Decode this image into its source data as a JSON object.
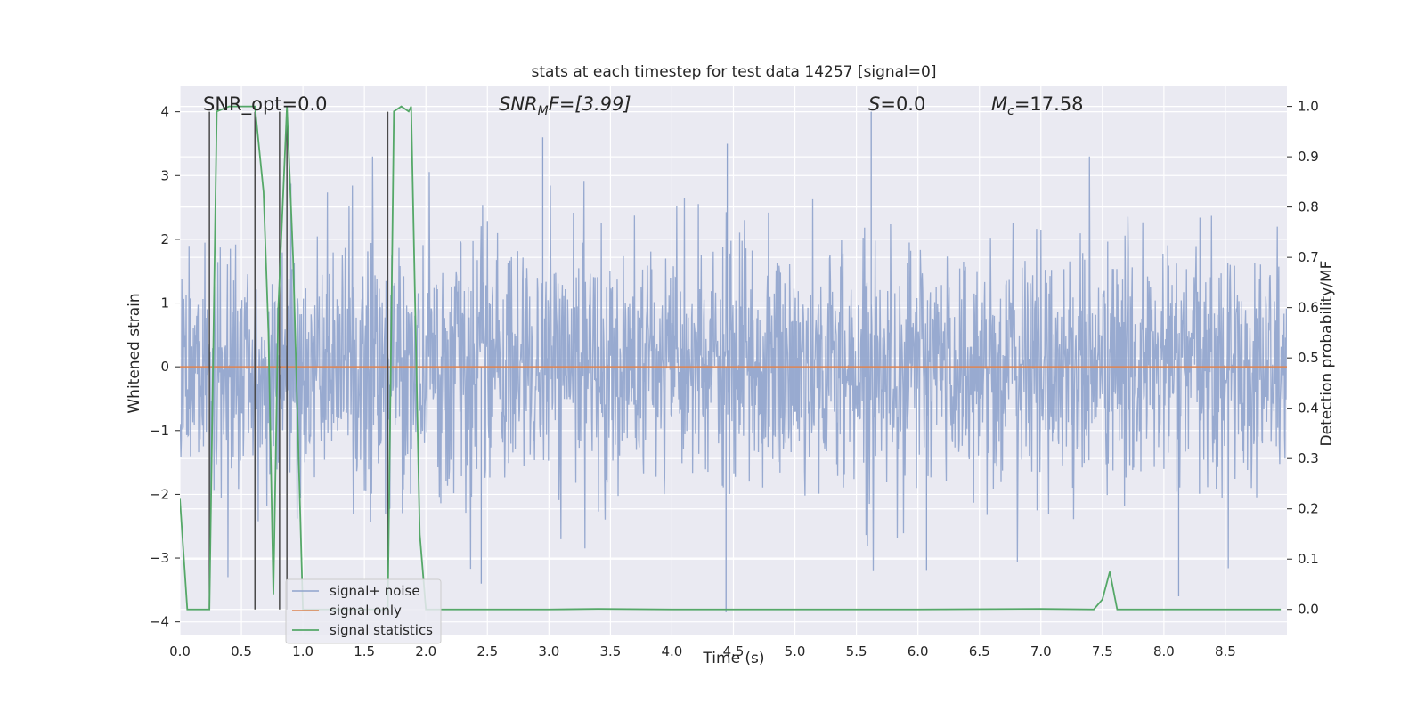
{
  "chart_data": {
    "type": "line",
    "title": "stats at each timestep for test data 14257 [signal=0]",
    "xlabel": "Time (s)",
    "ylabel": "Whitened strain",
    "y2label": "Detection probability/MF",
    "xlim": [
      0.0,
      9.0
    ],
    "ylim": [
      -4.2,
      4.4
    ],
    "y2lim": [
      -0.05,
      1.04
    ],
    "x_ticks": [
      "0.0",
      "0.5",
      "1.0",
      "1.5",
      "2.0",
      "2.5",
      "3.0",
      "3.5",
      "4.0",
      "4.5",
      "5.0",
      "5.5",
      "6.0",
      "6.5",
      "7.0",
      "7.5",
      "8.0",
      "8.5"
    ],
    "y_ticks": [
      "4",
      "3",
      "2",
      "1",
      "0",
      "−1",
      "−2",
      "−3",
      "−4"
    ],
    "y2_ticks": [
      "1.0",
      "0.9",
      "0.8",
      "0.7",
      "0.6",
      "0.5",
      "0.4",
      "0.3",
      "0.2",
      "0.1",
      "0.0"
    ],
    "grid": true,
    "legend_position": "lower-left",
    "annotations": [
      {
        "text": "SNR_opt=0.0",
        "x": 0.2,
        "y": 4.05
      },
      {
        "text_main": "SNR",
        "text_sub": "M",
        "text_tail": "F=[3.99]",
        "x": 2.6,
        "y": 4.05
      },
      {
        "text_main": "S",
        "text_tail": "=0.0",
        "x": 5.6,
        "y": 4.05
      },
      {
        "text_main": "M",
        "text_sub": "c",
        "text_tail": "=17.58",
        "x": 6.6,
        "y": 4.05
      }
    ],
    "vertical_lines_x": [
      0.24,
      0.61,
      0.81,
      0.87,
      1.69
    ],
    "series": [
      {
        "name": "signal+ noise",
        "color": "#8fa3cc",
        "kind": "noise",
        "sample_rate": 256,
        "std": 0.95,
        "spikes": [
          {
            "x": 2.95,
            "y": 3.6
          },
          {
            "x": 4.45,
            "y": 3.5
          },
          {
            "x": 4.44,
            "y": -3.85
          },
          {
            "x": 5.62,
            "y": 4.0
          },
          {
            "x": 6.07,
            "y": -3.2
          },
          {
            "x": 8.12,
            "y": -3.6
          },
          {
            "x": 2.45,
            "y": -3.4
          }
        ]
      },
      {
        "name": "signal only",
        "color": "#dd8452",
        "kind": "flat",
        "value": 0.0
      },
      {
        "name": "signal statistics",
        "color": "#55a868",
        "axis": "right",
        "x": [
          0.0,
          0.06,
          0.1,
          0.2,
          0.24,
          0.3,
          0.4,
          0.5,
          0.6,
          0.61,
          0.68,
          0.72,
          0.76,
          0.8,
          0.87,
          0.92,
          1.0,
          1.2,
          1.5,
          1.68,
          1.69,
          1.74,
          1.8,
          1.86,
          1.88,
          1.95,
          2.0,
          2.2,
          3.0,
          3.4,
          4.0,
          5.0,
          6.0,
          7.0,
          7.43,
          7.5,
          7.56,
          7.62,
          7.7,
          8.0,
          8.5,
          8.95
        ],
        "y": [
          0.22,
          0.0,
          0.0,
          0.0,
          0.0,
          0.99,
          1.0,
          1.0,
          1.0,
          1.0,
          0.83,
          0.55,
          0.03,
          0.6,
          1.0,
          0.7,
          0.0,
          0.0,
          0.0,
          0.0,
          0.0,
          0.99,
          1.0,
          0.99,
          1.0,
          0.15,
          0.0,
          0.0,
          0.0,
          0.001,
          0.0,
          0.0,
          0.0,
          0.001,
          0.0,
          0.02,
          0.075,
          0.0,
          0.0,
          0.0,
          0.0,
          0.0
        ]
      }
    ]
  }
}
